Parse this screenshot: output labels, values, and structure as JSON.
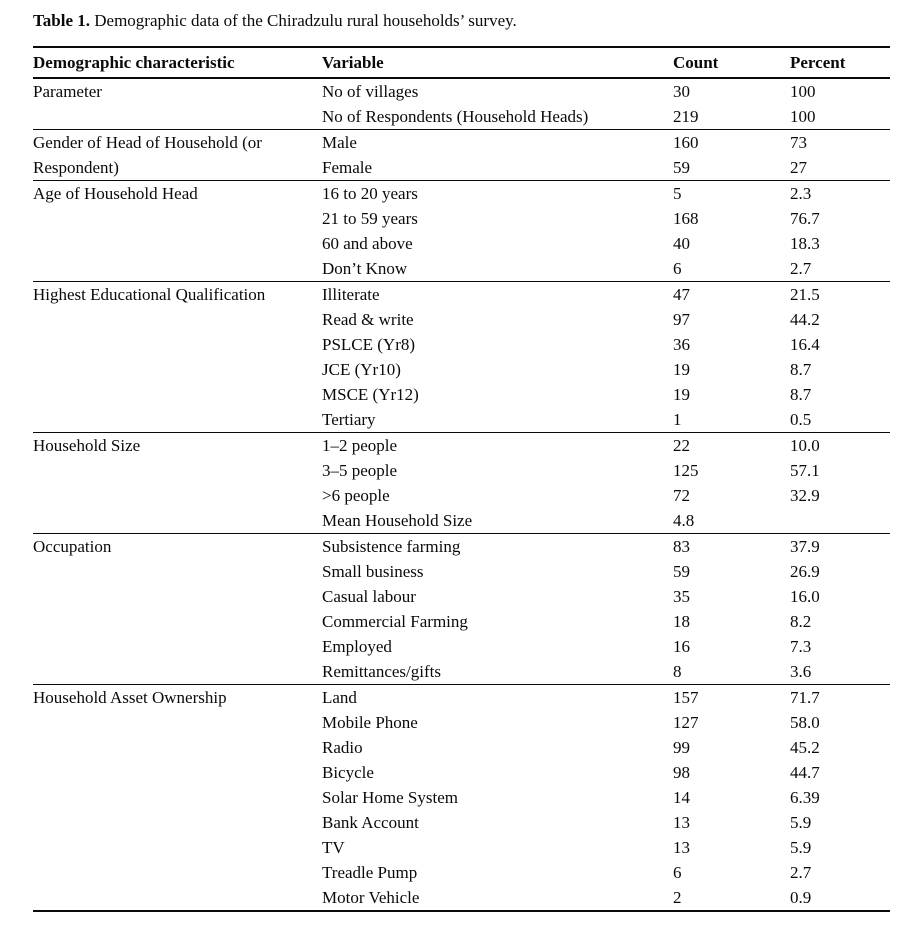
{
  "caption": {
    "label": "Table 1.",
    "text": " Demographic data of the Chiradzulu rural households’ survey."
  },
  "table": {
    "columns": [
      "Demographic characteristic",
      "Variable",
      "Count",
      "Percent"
    ],
    "sections": [
      {
        "characteristic": "Parameter",
        "rows": [
          {
            "variable": "No of villages",
            "count": "30",
            "percent": "100"
          },
          {
            "variable": "No of Respondents (Household Heads)",
            "count": "219",
            "percent": "100"
          }
        ]
      },
      {
        "characteristic": "Gender of Head of Household (or Respondent)",
        "rows": [
          {
            "variable": "Male",
            "count": "160",
            "percent": "73"
          },
          {
            "variable": "Female",
            "count": "59",
            "percent": "27"
          }
        ]
      },
      {
        "characteristic": "Age of Household Head",
        "rows": [
          {
            "variable": "16 to 20 years",
            "count": "5",
            "percent": "2.3"
          },
          {
            "variable": "21 to 59 years",
            "count": "168",
            "percent": "76.7"
          },
          {
            "variable": "60 and above",
            "count": "40",
            "percent": "18.3"
          },
          {
            "variable": "Don’t Know",
            "count": "6",
            "percent": "2.7"
          }
        ]
      },
      {
        "characteristic": "Highest Educational Qualification",
        "rows": [
          {
            "variable": "Illiterate",
            "count": "47",
            "percent": "21.5"
          },
          {
            "variable": "Read & write",
            "count": "97",
            "percent": "44.2"
          },
          {
            "variable": "PSLCE (Yr8)",
            "count": "36",
            "percent": "16.4"
          },
          {
            "variable": "JCE (Yr10)",
            "count": "19",
            "percent": "8.7"
          },
          {
            "variable": "MSCE (Yr12)",
            "count": "19",
            "percent": "8.7"
          },
          {
            "variable": "Tertiary",
            "count": "1",
            "percent": "0.5"
          }
        ]
      },
      {
        "characteristic": "Household Size",
        "rows": [
          {
            "variable": "1–2 people",
            "count": "22",
            "percent": "10.0"
          },
          {
            "variable": "3–5 people",
            "count": "125",
            "percent": "57.1"
          },
          {
            "variable": ">6 people",
            "count": "72",
            "percent": "32.9"
          },
          {
            "variable": "Mean Household Size",
            "count": "4.8",
            "percent": ""
          }
        ]
      },
      {
        "characteristic": "Occupation",
        "rows": [
          {
            "variable": "Subsistence farming",
            "count": "83",
            "percent": "37.9"
          },
          {
            "variable": "Small business",
            "count": "59",
            "percent": "26.9"
          },
          {
            "variable": "Casual labour",
            "count": "35",
            "percent": "16.0"
          },
          {
            "variable": "Commercial Farming",
            "count": "18",
            "percent": "8.2"
          },
          {
            "variable": "Employed",
            "count": "16",
            "percent": "7.3"
          },
          {
            "variable": "Remittances/gifts",
            "count": "8",
            "percent": "3.6"
          }
        ]
      },
      {
        "characteristic": "Household Asset Ownership",
        "rows": [
          {
            "variable": "Land",
            "count": "157",
            "percent": "71.7"
          },
          {
            "variable": "Mobile Phone",
            "count": "127",
            "percent": "58.0"
          },
          {
            "variable": "Radio",
            "count": "99",
            "percent": "45.2"
          },
          {
            "variable": "Bicycle",
            "count": "98",
            "percent": "44.7"
          },
          {
            "variable": "Solar Home System",
            "count": "14",
            "percent": "6.39"
          },
          {
            "variable": "Bank Account",
            "count": "13",
            "percent": "5.9"
          },
          {
            "variable": "TV",
            "count": "13",
            "percent": "5.9"
          },
          {
            "variable": "Treadle Pump",
            "count": "6",
            "percent": "2.7"
          },
          {
            "variable": "Motor Vehicle",
            "count": "2",
            "percent": "0.9"
          }
        ]
      }
    ]
  }
}
